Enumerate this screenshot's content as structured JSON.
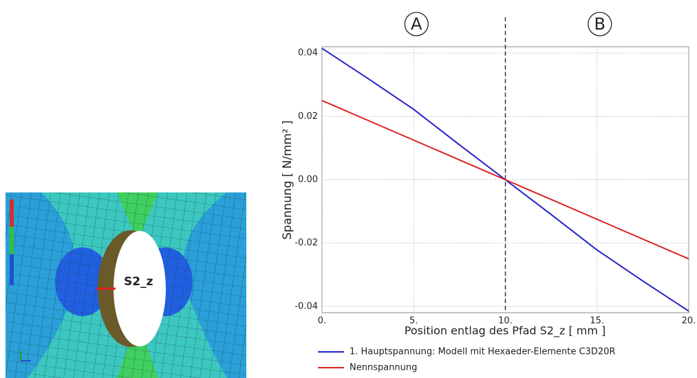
{
  "chart_data": {
    "type": "line",
    "xlabel": "Position entlag des Pfad S2_z [ mm ]",
    "ylabel": "Spannung [ N/mm² ]",
    "xlim": [
      0,
      20
    ],
    "xticks": [
      {
        "value": 0,
        "label": "0."
      },
      {
        "value": 5,
        "label": "5."
      },
      {
        "value": 10,
        "label": "10."
      },
      {
        "value": 15,
        "label": "15."
      },
      {
        "value": 20,
        "label": "20."
      }
    ],
    "ylim": [
      -0.042,
      0.042
    ],
    "yticks": [
      0.04,
      0.02,
      {
        "value": 0,
        "label": "0.00"
      },
      -0.02,
      -0.04
    ],
    "grid": true,
    "vline_x": 10,
    "annotations": [
      "A",
      "B"
    ],
    "series": [
      {
        "name": "1. Hauptspannung: Modell mit Hexaeder-Elemente C3D20R",
        "color": "#2222cc",
        "x": [
          0,
          2.5,
          5,
          7.5,
          10,
          12.5,
          15,
          17.5,
          20
        ],
        "values": [
          0.0415,
          0.032,
          0.0222,
          0.011,
          0,
          -0.011,
          -0.0222,
          -0.032,
          -0.0415
        ]
      },
      {
        "name": "Nennspannung",
        "color": "#dd2222",
        "x": [
          0,
          10,
          20
        ],
        "values": [
          0.025,
          0,
          -0.025
        ]
      }
    ]
  },
  "figure": {
    "label": "S2_z"
  }
}
